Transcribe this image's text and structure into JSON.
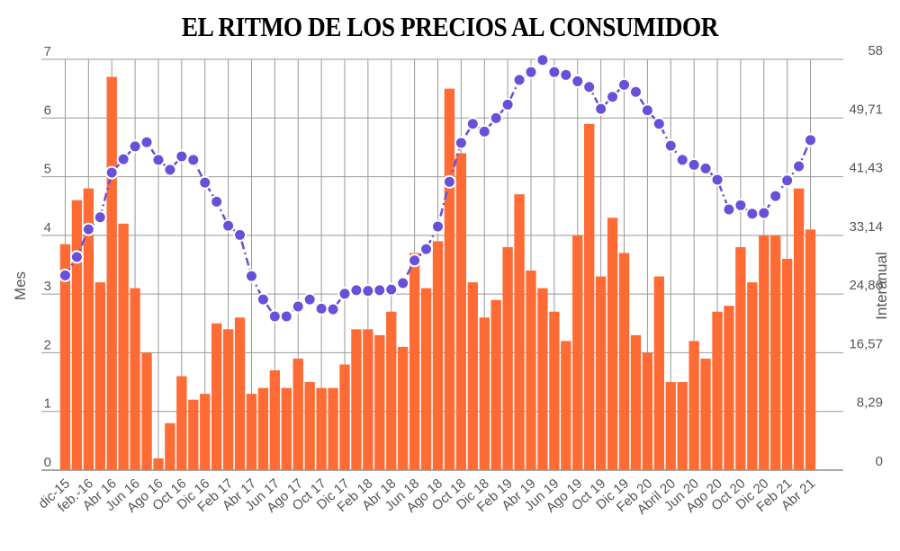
{
  "chart_data": {
    "type": "bar+line",
    "title": "EL RITMO DE LOS PRECIOS AL CONSUMIDOR",
    "ylabel_left": "Mes",
    "ylabel_right": "Interanual",
    "ylim_left": [
      0,
      7
    ],
    "ylim_right": [
      0,
      58
    ],
    "left_ticks": [
      "0",
      "1",
      "2",
      "3",
      "4",
      "5",
      "6",
      "7"
    ],
    "right_ticks": [
      "0",
      "8,29",
      "16,57",
      "24,86",
      "33,14",
      "41,43",
      "49,71",
      "58"
    ],
    "x_tick_labels": [
      "dic-15",
      "feb.-16",
      "Abr 16",
      "Jun 16",
      "Ago 16",
      "Oct 16",
      "Dic 16",
      "Feb 17",
      "Abr 17",
      "Jun 17",
      "Ago 17",
      "Oct 17",
      "Dic 17",
      "Feb 18",
      "Abr 18",
      "Jun 18",
      "Ago 18",
      "Oct 18",
      "Dic 18",
      "Feb 19",
      "Abr 19",
      "Jun 19",
      "Ago 19",
      "Oct 19",
      "Dic 19",
      "Feb 20",
      "Abril 20",
      "Jun 20",
      "Ago 20",
      "Oct 20",
      "Dic 20",
      "Feb 21",
      "Abr 21"
    ],
    "grid": true,
    "colors": {
      "bars": "#ff6b35",
      "line": "#6a4fd8",
      "grid": "#888888"
    },
    "series": [
      {
        "name": "Mes",
        "axis": "left",
        "type": "bar",
        "values": [
          3.85,
          4.6,
          4.8,
          3.2,
          6.7,
          4.2,
          3.1,
          2.0,
          0.2,
          0.8,
          1.6,
          1.2,
          1.3,
          2.5,
          2.4,
          2.6,
          1.3,
          1.4,
          1.7,
          1.4,
          1.9,
          1.5,
          1.4,
          1.4,
          1.8,
          2.4,
          2.4,
          2.3,
          2.7,
          2.1,
          3.7,
          3.1,
          3.9,
          6.5,
          5.4,
          3.2,
          2.6,
          2.9,
          3.8,
          4.7,
          3.4,
          3.1,
          2.7,
          2.2,
          4.0,
          5.9,
          3.3,
          4.3,
          3.7,
          2.3,
          2.0,
          3.3,
          1.5,
          1.5,
          2.2,
          1.9,
          2.7,
          2.8,
          3.8,
          3.2,
          4.0,
          4.0,
          3.6,
          4.8,
          4.1
        ]
      },
      {
        "name": "Interanual",
        "axis": "right",
        "type": "line",
        "values": [
          27.5,
          30.1,
          34.0,
          35.7,
          42.0,
          43.9,
          45.7,
          46.3,
          43.8,
          42.4,
          44.3,
          43.8,
          40.6,
          37.9,
          34.5,
          33.2,
          27.4,
          24.1,
          21.7,
          21.7,
          23.1,
          24.1,
          22.8,
          22.7,
          24.9,
          25.4,
          25.3,
          25.4,
          25.5,
          26.4,
          29.6,
          31.2,
          34.4,
          40.7,
          46.2,
          48.9,
          47.8,
          49.7,
          51.6,
          55.1,
          56.2,
          57.9,
          56.2,
          55.8,
          54.9,
          54.1,
          51.0,
          52.7,
          54.4,
          53.4,
          50.8,
          48.9,
          45.8,
          43.8,
          43.1,
          42.6,
          41.0,
          36.8,
          37.4,
          36.2,
          36.3,
          38.7,
          40.9,
          42.9,
          46.6
        ]
      }
    ]
  }
}
